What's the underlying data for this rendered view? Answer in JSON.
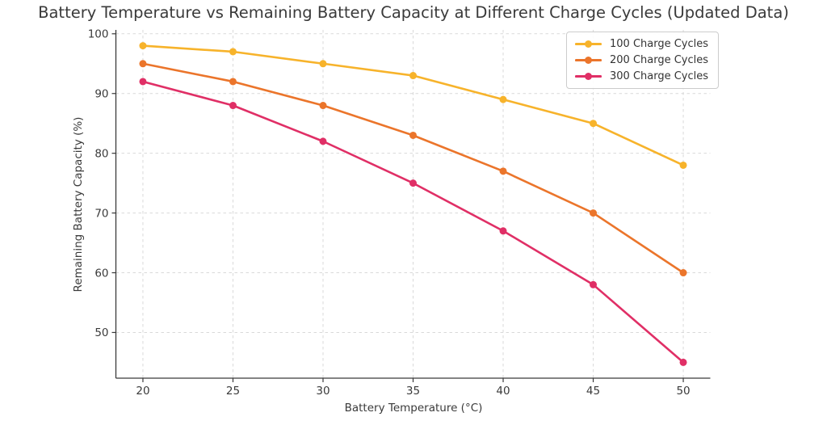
{
  "chart_data": {
    "type": "line",
    "title": "Battery Temperature vs Remaining Battery Capacity at Different Charge Cycles (Updated Data)",
    "xlabel": "Battery Temperature (°C)",
    "ylabel": "Remaining Battery Capacity (%)",
    "x": [
      20,
      25,
      30,
      35,
      40,
      45,
      50
    ],
    "x_ticks": [
      20,
      25,
      30,
      35,
      40,
      45,
      50
    ],
    "y_ticks": [
      50,
      60,
      70,
      80,
      90,
      100
    ],
    "xlim": [
      18.5,
      51.5
    ],
    "ylim": [
      42.35,
      100.65
    ],
    "grid": true,
    "grid_style": "dashed",
    "grid_color": "#d9d9d9",
    "spine_color": "#3a3a3a",
    "legend_position": "upper right",
    "series": [
      {
        "name": "100 Charge Cycles",
        "color": "#F7B32B",
        "values": [
          98,
          97,
          95,
          93,
          89,
          85,
          78
        ]
      },
      {
        "name": "200 Charge Cycles",
        "color": "#EB752B",
        "values": [
          95,
          92,
          88,
          83,
          77,
          70,
          60
        ]
      },
      {
        "name": "300 Charge Cycles",
        "color": "#E02F66",
        "values": [
          92,
          88,
          82,
          75,
          67,
          58,
          45
        ]
      }
    ]
  }
}
